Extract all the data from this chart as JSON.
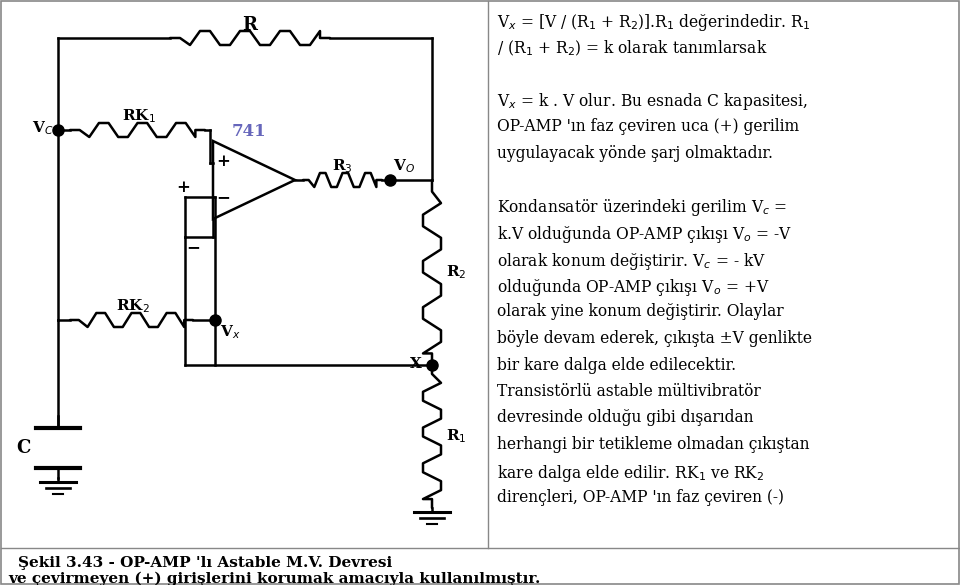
{
  "bg_color": "#ffffff",
  "border_color": "#888888",
  "text_color": "#000000",
  "label_color_741": "#6666bb",
  "title": "Şekil 3.43 - OP-AMP 'lı Astable M.V. Devresi",
  "bottom_text": "ve çevirmeyen (+) girişlerini korumak amacıyla kullanılmıştır.",
  "right_text_lines": [
    [
      "V$_x$ = [V / (R$_1$ + R$_2$)].R$_1$ değerindedir. R$_1$",
      false
    ],
    [
      "/ (R$_1$ + R$_2$) = k olarak tanımlarsak",
      false
    ],
    [
      "",
      false
    ],
    [
      "V$_x$ = k . V olur. Bu esnada C kapasitesi,",
      false
    ],
    [
      "OP-AMP 'ın faz çeviren uca (+) gerilim",
      false
    ],
    [
      "uygulayacak yönde şarj olmaktadır.",
      false
    ],
    [
      "",
      false
    ],
    [
      "Kondansatör üzerindeki gerilim V$_c$ =",
      false
    ],
    [
      "k.V olduğunda OP-AMP çıkışı V$_o$ = -V",
      false
    ],
    [
      "olarak konum değiştirir. V$_c$ = - kV",
      false
    ],
    [
      "olduğunda OP-AMP çıkışı V$_o$ = +V",
      false
    ],
    [
      "olarak yine konum değiştirir. Olaylar",
      false
    ],
    [
      "böyle devam ederek, çıkışta ±V genlikte",
      false
    ],
    [
      "bir kare dalga elde edilecektir.",
      false
    ],
    [
      "Transistörlü astable mültivibratör",
      false
    ],
    [
      "devresinde olduğu gibi dışarıdan",
      false
    ],
    [
      "herhangi bir tetikleme olmadan çıkıştan",
      false
    ],
    [
      "kare dalga elde edilir. RK$_1$ ve RK$_2$",
      false
    ],
    [
      "dirençleri, OP-AMP 'ın faz çeviren (-)",
      false
    ]
  ]
}
